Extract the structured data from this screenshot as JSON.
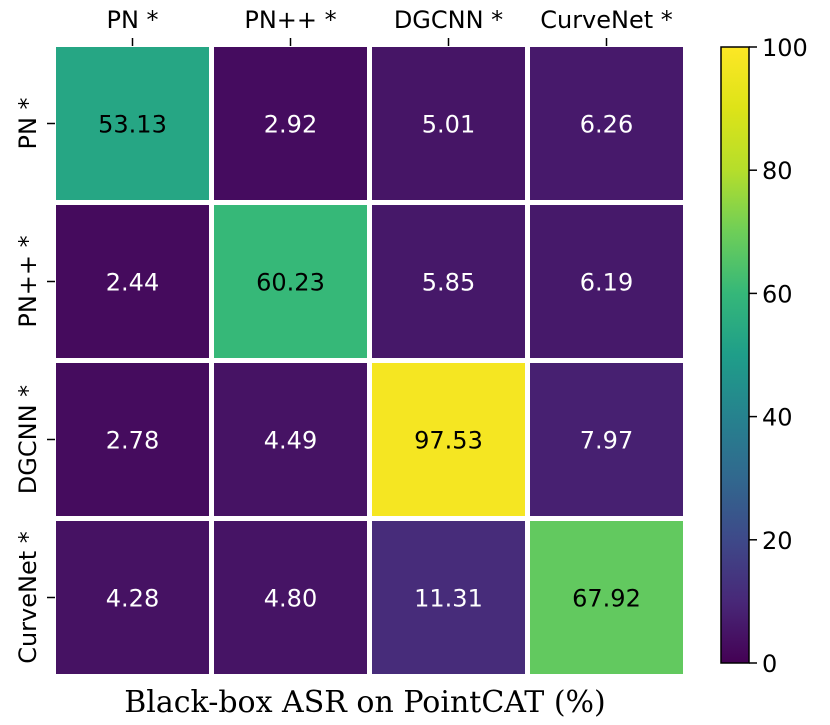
{
  "chart_data": {
    "type": "heatmap",
    "title": "",
    "xlabel": "",
    "ylabel": "",
    "caption": "Black-box ASR on PointCAT (%)",
    "columns": [
      "PN *",
      "PN++ *",
      "DGCNN *",
      "CurveNet *"
    ],
    "rows": [
      "PN *",
      "PN++ *",
      "DGCNN *",
      "CurveNet *"
    ],
    "values": [
      [
        53.13,
        2.92,
        5.01,
        6.26
      ],
      [
        2.44,
        60.23,
        5.85,
        6.19
      ],
      [
        2.78,
        4.49,
        97.53,
        7.97
      ],
      [
        4.28,
        4.8,
        11.31,
        67.92
      ]
    ],
    "value_labels": [
      [
        "53.13",
        "2.92",
        "5.01",
        "6.26"
      ],
      [
        "2.44",
        "60.23",
        "5.85",
        "6.19"
      ],
      [
        "2.78",
        "4.49",
        "97.53",
        "7.97"
      ],
      [
        "4.28",
        "4.80",
        "11.31",
        "67.92"
      ]
    ],
    "colorbar": {
      "range": [
        0,
        100
      ],
      "ticks": [
        0,
        20,
        40,
        60,
        80,
        100
      ],
      "tick_labels": [
        "0",
        "20",
        "40",
        "60",
        "80",
        "100"
      ],
      "colormap": "viridis"
    },
    "legend": "colorbar-right",
    "grid": false
  }
}
